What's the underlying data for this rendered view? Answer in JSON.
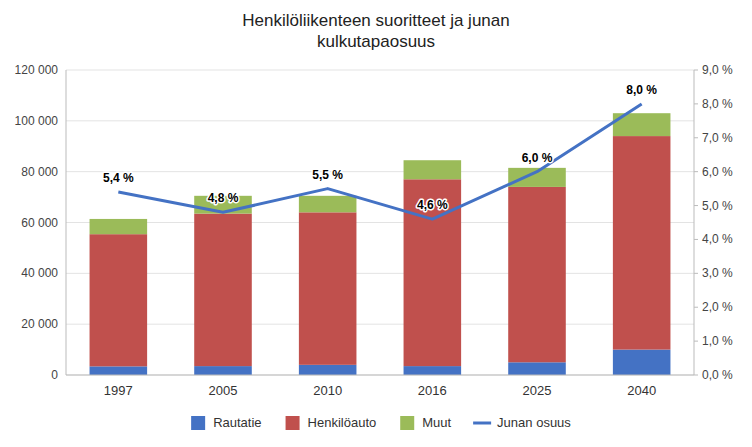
{
  "chart_data": {
    "type": "bar",
    "title": "Henkilöliikenteen suoritteet ja junan\nkulkutapaosuus",
    "categories": [
      "1997",
      "2005",
      "2010",
      "2016",
      "2025",
      "2040"
    ],
    "stacked": true,
    "series": [
      {
        "name": "Rautatie",
        "color": "#4472c4",
        "values": [
          3400,
          3500,
          4000,
          3500,
          5000,
          10000
        ]
      },
      {
        "name": "Henkilöauto",
        "color": "#c0504d",
        "values": [
          52000,
          60000,
          60000,
          73500,
          69000,
          84000
        ]
      },
      {
        "name": "Muut",
        "color": "#9bbb59",
        "values": [
          6000,
          7000,
          6500,
          7500,
          7500,
          9000
        ]
      },
      {
        "name": "Junan osuus",
        "type": "line",
        "axis": "y2",
        "color": "#4472c4",
        "values": [
          0.054,
          0.048,
          0.055,
          0.046,
          0.06,
          0.08
        ],
        "value_labels": [
          "5,4 %",
          "4,8 %",
          "5,5 %",
          "4,6 %",
          "6,0 %",
          "8,0 %"
        ]
      }
    ],
    "ylim": [
      0,
      120000
    ],
    "yticks": [
      0,
      {
        "value": 20000,
        "label": "20 000"
      },
      {
        "value": 40000,
        "label": "40 000"
      },
      {
        "value": 60000,
        "label": "60 000"
      },
      {
        "value": 80000,
        "label": "80 000"
      },
      {
        "value": 100000,
        "label": "100 000"
      },
      {
        "value": 120000,
        "label": "120 000"
      }
    ],
    "y2lim": [
      0,
      0.09
    ],
    "y2ticks": [
      {
        "value": 0.0,
        "label": "0,0 %"
      },
      {
        "value": 0.01,
        "label": "1,0 %"
      },
      {
        "value": 0.02,
        "label": "2,0 %"
      },
      {
        "value": 0.03,
        "label": "3,0 %"
      },
      {
        "value": 0.04,
        "label": "4,0 %"
      },
      {
        "value": 0.05,
        "label": "5,0 %"
      },
      {
        "value": 0.06,
        "label": "6,0 %"
      },
      {
        "value": 0.07,
        "label": "7,0 %"
      },
      {
        "value": 0.08,
        "label": "8,0 %"
      },
      {
        "value": 0.09,
        "label": "9,0 %"
      }
    ],
    "grid": true,
    "legend": "bottom",
    "data_labels": true
  }
}
